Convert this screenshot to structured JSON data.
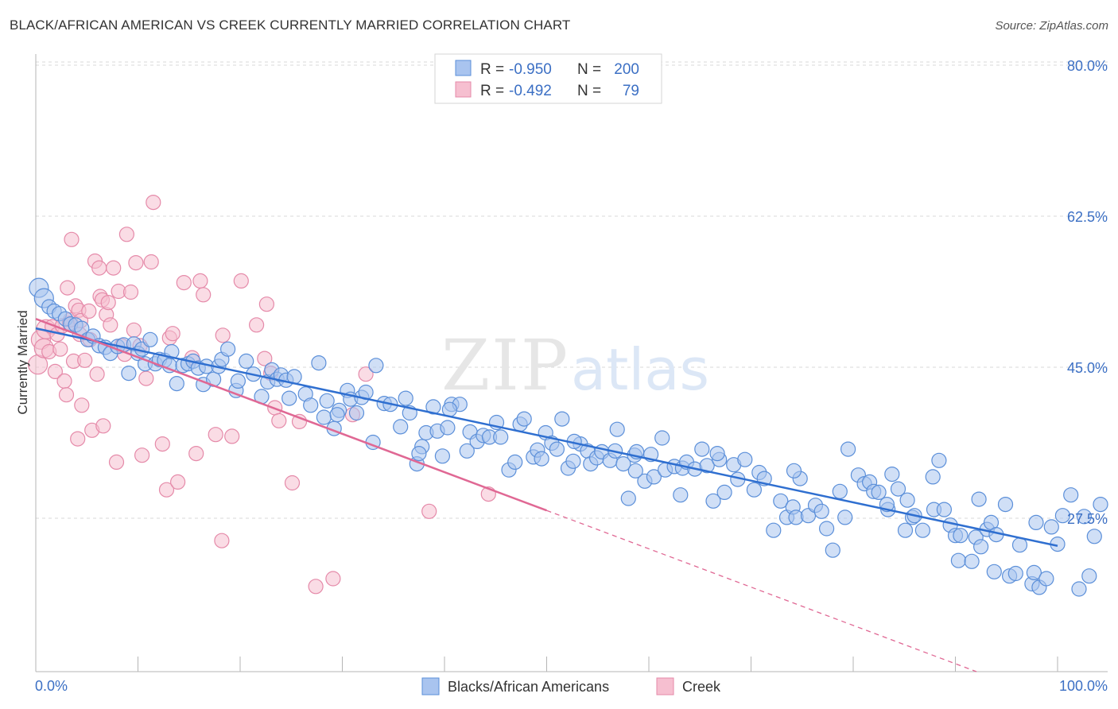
{
  "title": "BLACK/AFRICAN AMERICAN VS CREEK CURRENTLY MARRIED CORRELATION CHART",
  "source": "Source: ZipAtlas.com",
  "watermark": {
    "zip": "ZIP",
    "atlas": "atlas"
  },
  "colors": {
    "blue_fill": "#a9c4ef",
    "blue_stroke": "#5b8fd9",
    "blue_line": "#2f6fd0",
    "pink_fill": "#f6bfd0",
    "pink_stroke": "#e58aa9",
    "pink_line": "#e06894",
    "grid": "#d8d8d8",
    "tick_text": "#3b6fc4"
  },
  "legend": {
    "rows": [
      {
        "r_label": "R =",
        "r_value": "-0.950",
        "n_label": "N =",
        "n_value": "200",
        "color": "blue"
      },
      {
        "r_label": "R =",
        "r_value": "-0.492",
        "n_label": "N =",
        "n_value": "79",
        "color": "pink"
      }
    ]
  },
  "bottom_legend": [
    "Blacks/African Americans",
    "Creek"
  ],
  "chart_data": {
    "type": "scatter",
    "title": "BLACK/AFRICAN AMERICAN VS CREEK CURRENTLY MARRIED CORRELATION CHART",
    "xlabel": "",
    "ylabel": "Currently Married",
    "xlim": [
      0,
      100
    ],
    "ylim": [
      11,
      82
    ],
    "x_tick_labels": [
      "0.0%",
      "100.0%"
    ],
    "y_ticks": [
      27.5,
      45.0,
      62.5,
      80.0
    ],
    "y_tick_labels": [
      "27.5%",
      "45.0%",
      "62.5%",
      "80.0%"
    ],
    "grid": true,
    "legend_position": "top-center",
    "series": [
      {
        "name": "Blacks/African Americans",
        "color": "blue",
        "trend": {
          "x": [
            0,
            100
          ],
          "y": [
            49.5,
            24.3
          ]
        },
        "points": [
          [
            0.3,
            54.2
          ],
          [
            0.8,
            53
          ],
          [
            1.3,
            52
          ],
          [
            1.8,
            51.5
          ],
          [
            2.3,
            51.2
          ],
          [
            2.9,
            50.6
          ],
          [
            3.4,
            50
          ],
          [
            3.9,
            49.9
          ],
          [
            4.5,
            49.5
          ],
          [
            5.1,
            48.2
          ],
          [
            5.6,
            48.6
          ],
          [
            6.2,
            47.5
          ],
          [
            6.8,
            47.3
          ],
          [
            7.3,
            46.6
          ],
          [
            8,
            47.4
          ],
          [
            8.6,
            47.6
          ],
          [
            9.1,
            44.3
          ],
          [
            9.6,
            47.7
          ],
          [
            10,
            46.6
          ],
          [
            10.4,
            47.1
          ],
          [
            10.7,
            45.4
          ],
          [
            11.2,
            48.2
          ],
          [
            11.7,
            45.4
          ],
          [
            12.1,
            45.9
          ],
          [
            12.6,
            45.8
          ],
          [
            13.1,
            45.2
          ],
          [
            13.3,
            46.8
          ],
          [
            13.8,
            43.1
          ],
          [
            14.4,
            45.2
          ],
          [
            14.9,
            45.4
          ],
          [
            15.4,
            45.7
          ],
          [
            15.9,
            44.9
          ],
          [
            16.4,
            43
          ],
          [
            16.7,
            45.1
          ],
          [
            17.4,
            43.6
          ],
          [
            17.9,
            45.1
          ],
          [
            18.2,
            45.9
          ],
          [
            18.8,
            47.1
          ],
          [
            19.6,
            42.3
          ],
          [
            19.8,
            43.4
          ],
          [
            20.6,
            45.7
          ],
          [
            21.3,
            44.2
          ],
          [
            22.1,
            41.6
          ],
          [
            22.7,
            43.3
          ],
          [
            23.1,
            44.7
          ],
          [
            23.6,
            43.6
          ],
          [
            24,
            44.1
          ],
          [
            24.5,
            43.5
          ],
          [
            24.8,
            41.4
          ],
          [
            25.3,
            43.9
          ],
          [
            26.4,
            41.9
          ],
          [
            26.9,
            40.6
          ],
          [
            27.7,
            45.5
          ],
          [
            28.2,
            39.2
          ],
          [
            28.5,
            41.1
          ],
          [
            29.2,
            37.9
          ],
          [
            29.7,
            40
          ],
          [
            30.5,
            42.3
          ],
          [
            30.8,
            41.3
          ],
          [
            31.4,
            39.7
          ],
          [
            31.9,
            41.5
          ],
          [
            32.3,
            42.1
          ],
          [
            33,
            36.3
          ],
          [
            33.3,
            45.2
          ],
          [
            34.1,
            40.8
          ],
          [
            34.7,
            40.7
          ],
          [
            35.7,
            38.1
          ],
          [
            36.2,
            41.4
          ],
          [
            36.6,
            39.7
          ],
          [
            37.3,
            33.8
          ],
          [
            37.8,
            35.8
          ],
          [
            38.2,
            37.4
          ],
          [
            38.9,
            40.4
          ],
          [
            39.3,
            37.6
          ],
          [
            39.8,
            34.7
          ],
          [
            40.3,
            38
          ],
          [
            40.7,
            40.7
          ],
          [
            41.5,
            40.7
          ],
          [
            42.2,
            35.3
          ],
          [
            42.5,
            37.5
          ],
          [
            43.2,
            36.4
          ],
          [
            43.8,
            37.1
          ],
          [
            44.4,
            36.9
          ],
          [
            45.1,
            38.6
          ],
          [
            45.5,
            36.9
          ],
          [
            46.3,
            33.1
          ],
          [
            46.9,
            34
          ],
          [
            47.4,
            38.4
          ],
          [
            47.8,
            39
          ],
          [
            48.7,
            34.6
          ],
          [
            49.1,
            35.4
          ],
          [
            49.9,
            37.4
          ],
          [
            50.5,
            36.2
          ],
          [
            51,
            35.5
          ],
          [
            51.5,
            39
          ],
          [
            52.1,
            33.3
          ],
          [
            52.6,
            34.1
          ],
          [
            53.3,
            36.1
          ],
          [
            54,
            35.3
          ],
          [
            54.3,
            33.8
          ],
          [
            54.9,
            34.5
          ],
          [
            55.4,
            35.2
          ],
          [
            56.2,
            34.2
          ],
          [
            56.7,
            35.3
          ],
          [
            56.9,
            37.8
          ],
          [
            57.5,
            33.8
          ],
          [
            58,
            29.8
          ],
          [
            58.6,
            34.8
          ],
          [
            58.8,
            35.2
          ],
          [
            59.6,
            31.8
          ],
          [
            60.2,
            34.9
          ],
          [
            60.5,
            32.3
          ],
          [
            61.3,
            36.8
          ],
          [
            61.6,
            33.1
          ],
          [
            62.5,
            33.5
          ],
          [
            63.3,
            33.3
          ],
          [
            63.7,
            34
          ],
          [
            64.5,
            33.2
          ],
          [
            65.2,
            35.5
          ],
          [
            65.7,
            33.6
          ],
          [
            66.3,
            29.5
          ],
          [
            66.9,
            34.3
          ],
          [
            67.4,
            30.5
          ],
          [
            68.3,
            33.7
          ],
          [
            68.7,
            32
          ],
          [
            69.4,
            34.3
          ],
          [
            70.3,
            30.8
          ],
          [
            70.8,
            32.8
          ],
          [
            71.3,
            32.1
          ],
          [
            72.2,
            26.1
          ],
          [
            72.9,
            29.5
          ],
          [
            73.5,
            27.6
          ],
          [
            74.1,
            28.8
          ],
          [
            74.4,
            27.6
          ],
          [
            74.8,
            32.1
          ],
          [
            75.6,
            27.8
          ],
          [
            76.3,
            29
          ],
          [
            76.9,
            28.3
          ],
          [
            77.4,
            26.3
          ],
          [
            78,
            23.8
          ],
          [
            78.7,
            30.6
          ],
          [
            79.2,
            27.6
          ],
          [
            79.5,
            35.5
          ],
          [
            80.5,
            32.5
          ],
          [
            81.1,
            31.5
          ],
          [
            81.6,
            31.7
          ],
          [
            82,
            30.6
          ],
          [
            82.5,
            30.5
          ],
          [
            83.4,
            28.5
          ],
          [
            83.8,
            32.6
          ],
          [
            84.4,
            30.9
          ],
          [
            85.1,
            26.1
          ],
          [
            85.3,
            29.6
          ],
          [
            85.8,
            27.6
          ],
          [
            86,
            27.8
          ],
          [
            86.8,
            26.1
          ],
          [
            87.8,
            32.3
          ],
          [
            87.9,
            28.5
          ],
          [
            88.4,
            34.2
          ],
          [
            88.9,
            28.5
          ],
          [
            89.5,
            26.7
          ],
          [
            90,
            25.5
          ],
          [
            90.3,
            22.6
          ],
          [
            90.5,
            25.5
          ],
          [
            91.6,
            22.5
          ],
          [
            92,
            25.3
          ],
          [
            92.5,
            24.2
          ],
          [
            93.1,
            26.2
          ],
          [
            93.5,
            27
          ],
          [
            93.8,
            21.3
          ],
          [
            94,
            25.6
          ],
          [
            94.9,
            29.1
          ],
          [
            95.3,
            20.8
          ],
          [
            95.9,
            21.1
          ],
          [
            96.3,
            24.4
          ],
          [
            97.5,
            19.9
          ],
          [
            97.7,
            21.2
          ],
          [
            98.2,
            19.5
          ],
          [
            98.9,
            20.5
          ],
          [
            99.4,
            26.5
          ],
          [
            100,
            24.5
          ],
          [
            100.5,
            27.8
          ],
          [
            101.3,
            30.2
          ],
          [
            102.1,
            19.3
          ],
          [
            102.6,
            27.7
          ],
          [
            103.1,
            20.8
          ],
          [
            103.6,
            25.4
          ],
          [
            104.2,
            29.1
          ],
          [
            40.5,
            40.1
          ],
          [
            52.7,
            36.4
          ],
          [
            58.7,
            33
          ],
          [
            63.1,
            30.2
          ],
          [
            74.2,
            33
          ],
          [
            83.3,
            29.1
          ],
          [
            92.3,
            29.7
          ],
          [
            97.9,
            27
          ],
          [
            66.7,
            35
          ],
          [
            49.5,
            34.4
          ],
          [
            37.5,
            35
          ],
          [
            29.5,
            39.5
          ]
        ]
      },
      {
        "name": "Creek",
        "color": "pink",
        "trend": {
          "x": [
            0,
            50
          ],
          "y": [
            50.6,
            28.4
          ],
          "dashed_to": {
            "x": 100,
            "y": 6.2
          }
        },
        "points": [
          [
            0.2,
            45.3
          ],
          [
            0.5,
            48.2
          ],
          [
            0.8,
            47.2
          ],
          [
            1,
            49.4
          ],
          [
            1.3,
            46.8
          ],
          [
            1.6,
            49.7
          ],
          [
            1.9,
            44.5
          ],
          [
            2.1,
            48.8
          ],
          [
            2.4,
            47.1
          ],
          [
            2.6,
            49.8
          ],
          [
            2.8,
            43.4
          ],
          [
            3,
            41.8
          ],
          [
            3.1,
            54.2
          ],
          [
            3.3,
            50.1
          ],
          [
            3.4,
            50.5
          ],
          [
            3.5,
            59.8
          ],
          [
            3.7,
            45.7
          ],
          [
            3.9,
            52.1
          ],
          [
            4.1,
            36.7
          ],
          [
            4.2,
            51.6
          ],
          [
            4.3,
            48.8
          ],
          [
            4.4,
            50.4
          ],
          [
            4.5,
            40.6
          ],
          [
            4.8,
            45.8
          ],
          [
            5.2,
            51.5
          ],
          [
            5.3,
            48.2
          ],
          [
            5.5,
            37.7
          ],
          [
            5.8,
            57.3
          ],
          [
            6,
            44.2
          ],
          [
            6.2,
            56.5
          ],
          [
            6.3,
            53.2
          ],
          [
            6.5,
            52.8
          ],
          [
            6.6,
            38.2
          ],
          [
            6.9,
            51.1
          ],
          [
            7.1,
            52.5
          ],
          [
            7.3,
            49.9
          ],
          [
            7.6,
            56.5
          ],
          [
            7.9,
            34
          ],
          [
            8.1,
            53.8
          ],
          [
            8.4,
            47.5
          ],
          [
            8.7,
            46.5
          ],
          [
            8.9,
            60.4
          ],
          [
            9.3,
            53.7
          ],
          [
            9.6,
            49.3
          ],
          [
            9.8,
            57.1
          ],
          [
            10.2,
            47.5
          ],
          [
            10.4,
            34.8
          ],
          [
            10.8,
            43.7
          ],
          [
            11.3,
            57.2
          ],
          [
            11.5,
            64.1
          ],
          [
            12.4,
            36.1
          ],
          [
            12.8,
            30.8
          ],
          [
            13.1,
            48.4
          ],
          [
            13.4,
            48.9
          ],
          [
            13.9,
            31.7
          ],
          [
            14.5,
            54.8
          ],
          [
            15.3,
            46.1
          ],
          [
            15.7,
            35
          ],
          [
            16.1,
            55
          ],
          [
            16.4,
            53.4
          ],
          [
            17.6,
            37.2
          ],
          [
            18.2,
            24.9
          ],
          [
            18.3,
            48.7
          ],
          [
            19.2,
            37
          ],
          [
            20.1,
            55
          ],
          [
            21.6,
            49.9
          ],
          [
            22.4,
            46
          ],
          [
            22.6,
            52.3
          ],
          [
            23,
            44.3
          ],
          [
            23.4,
            40.3
          ],
          [
            23.8,
            38.8
          ],
          [
            25.1,
            31.6
          ],
          [
            25.8,
            38.7
          ],
          [
            27.4,
            19.6
          ],
          [
            29.1,
            20.5
          ],
          [
            31,
            39.5
          ],
          [
            32.3,
            44.2
          ],
          [
            38.5,
            28.3
          ],
          [
            44.3,
            30.3
          ]
        ]
      }
    ]
  }
}
